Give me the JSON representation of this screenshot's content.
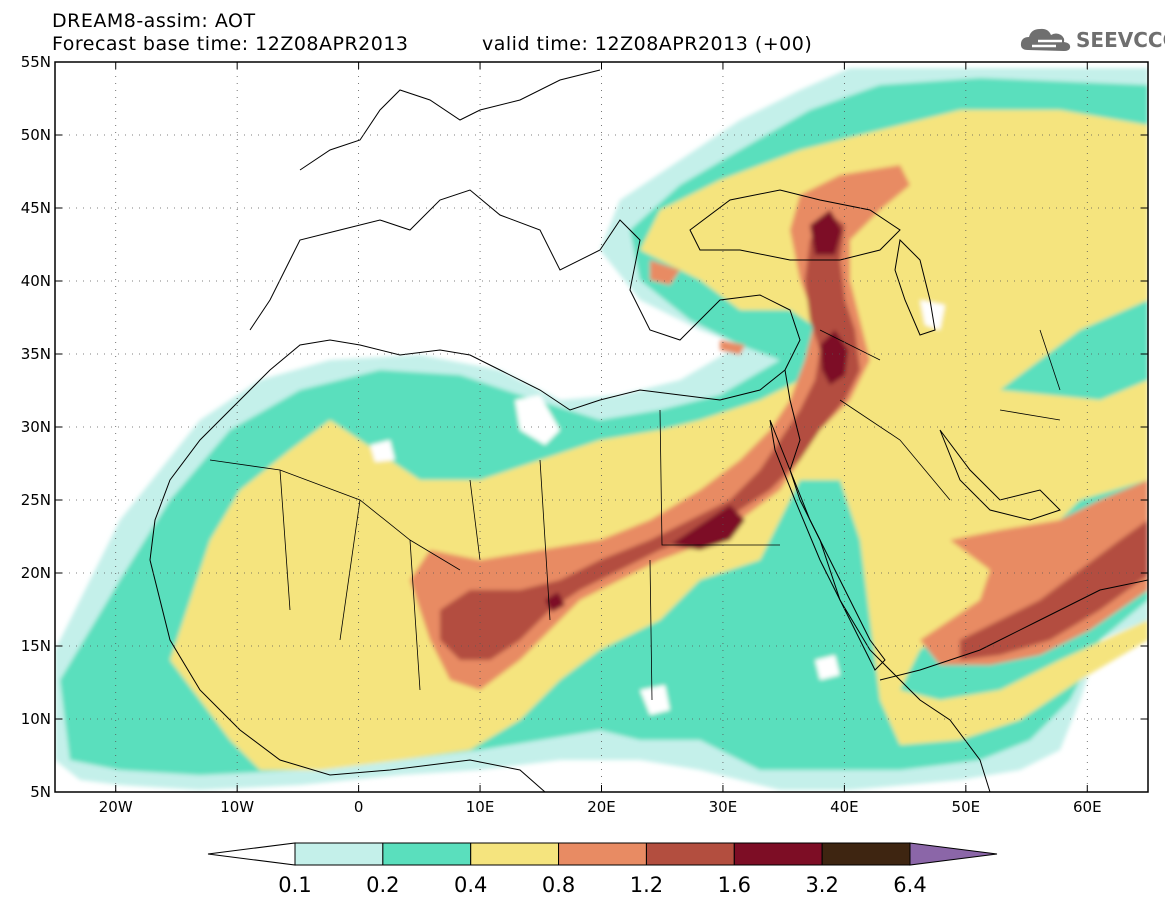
{
  "header": {
    "title_line1": "DREAM8-assim: AOT",
    "title_line2": "Forecast base time: 12Z08APR2013",
    "valid_time": "valid time: 12Z08APR2013 (+00)",
    "logo_text": "SEEVCCC"
  },
  "map": {
    "lat_ticks": [
      {
        "label": "55N",
        "value": 55
      },
      {
        "label": "50N",
        "value": 50
      },
      {
        "label": "45N",
        "value": 45
      },
      {
        "label": "40N",
        "value": 40
      },
      {
        "label": "35N",
        "value": 35
      },
      {
        "label": "30N",
        "value": 30
      },
      {
        "label": "25N",
        "value": 25
      },
      {
        "label": "20N",
        "value": 20
      },
      {
        "label": "15N",
        "value": 15
      },
      {
        "label": "10N",
        "value": 10
      },
      {
        "label": "5N",
        "value": 5
      }
    ],
    "lon_ticks": [
      {
        "label": "20W",
        "value": -20
      },
      {
        "label": "10W",
        "value": -10
      },
      {
        "label": "0",
        "value": 0
      },
      {
        "label": "10E",
        "value": 10
      },
      {
        "label": "20E",
        "value": 20
      },
      {
        "label": "30E",
        "value": 30
      },
      {
        "label": "40E",
        "value": 40
      },
      {
        "label": "50E",
        "value": 50
      },
      {
        "label": "60E",
        "value": 60
      }
    ],
    "lon_range": [
      -25,
      65
    ],
    "lat_range": [
      5,
      55
    ]
  },
  "colorbar": {
    "labels": [
      "0.1",
      "0.2",
      "0.4",
      "0.8",
      "1.2",
      "1.6",
      "3.2",
      "6.4"
    ],
    "colors": [
      "#ffffff",
      "#c4f0ea",
      "#5adfbd",
      "#f5e47e",
      "#e88b63",
      "#b34e3f",
      "#7d0d25",
      "#3e2511",
      "#8b66a8"
    ]
  }
}
